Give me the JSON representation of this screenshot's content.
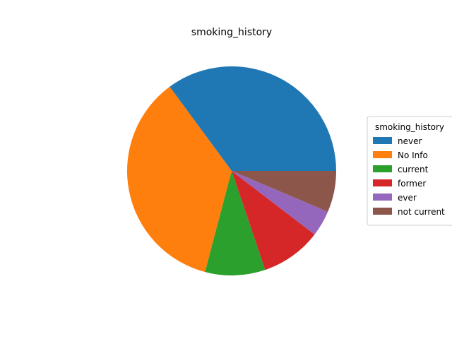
{
  "chart_data": {
    "type": "pie",
    "title": "smoking_history",
    "legend_title": "smoking_history",
    "legend_position": "center-right",
    "start_angle_deg": 0,
    "direction": "counterclockwise",
    "slices": [
      {
        "label": "never",
        "value": 35.1,
        "color": "#1f77b4"
      },
      {
        "label": "No Info",
        "value": 35.8,
        "color": "#ff7f0e"
      },
      {
        "label": "current",
        "value": 9.3,
        "color": "#2ca02c"
      },
      {
        "label": "former",
        "value": 9.4,
        "color": "#d62728"
      },
      {
        "label": "ever",
        "value": 4.0,
        "color": "#9467bd"
      },
      {
        "label": "not current",
        "value": 6.4,
        "color": "#8c564b"
      }
    ]
  }
}
